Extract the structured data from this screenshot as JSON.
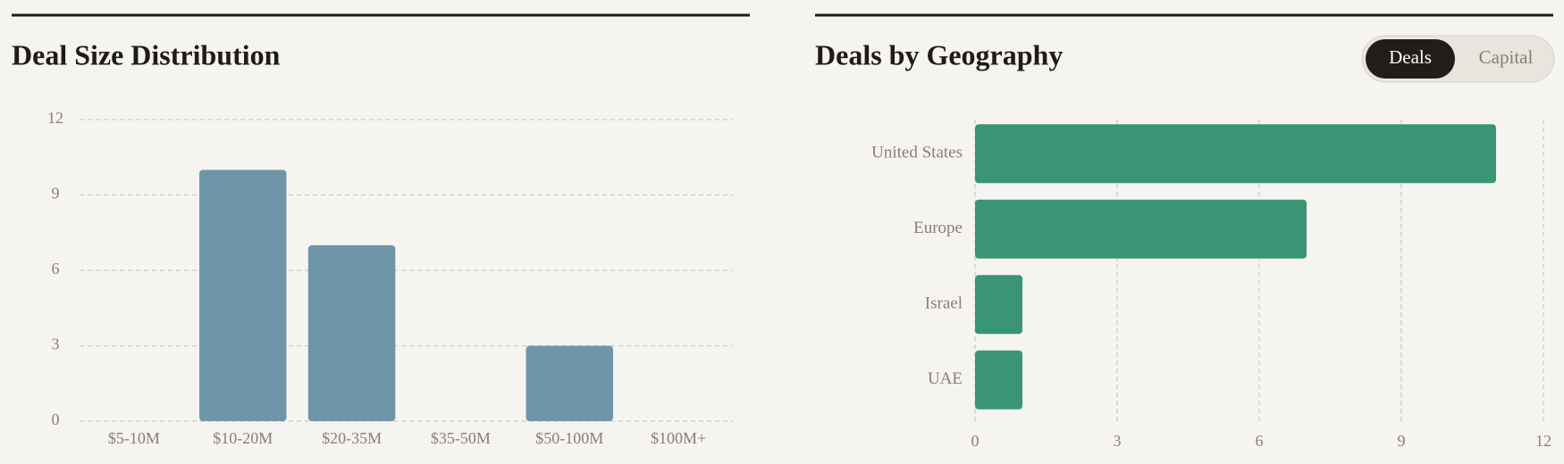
{
  "chart_data": [
    {
      "type": "bar",
      "title": "Deal Size Distribution",
      "categories": [
        "$5-10M",
        "$10-20M",
        "$20-35M",
        "$35-50M",
        "$50-100M",
        "$100M+"
      ],
      "values": [
        0,
        10,
        7,
        0,
        3,
        0
      ],
      "color": "#6f95a8",
      "ylim": [
        0,
        12
      ],
      "yticks": [
        0,
        3,
        6,
        9,
        12
      ],
      "grid": true
    },
    {
      "type": "hbar",
      "title": "Deals by Geography",
      "categories": [
        "United States",
        "Europe",
        "Israel",
        "UAE"
      ],
      "values": [
        11,
        7,
        1,
        1
      ],
      "color": "#3a9577",
      "xlim": [
        0,
        12
      ],
      "xticks": [
        0,
        3,
        6,
        9,
        12
      ],
      "grid": true,
      "toggle": {
        "options": [
          "Deals",
          "Capital"
        ],
        "active": 0
      }
    }
  ]
}
